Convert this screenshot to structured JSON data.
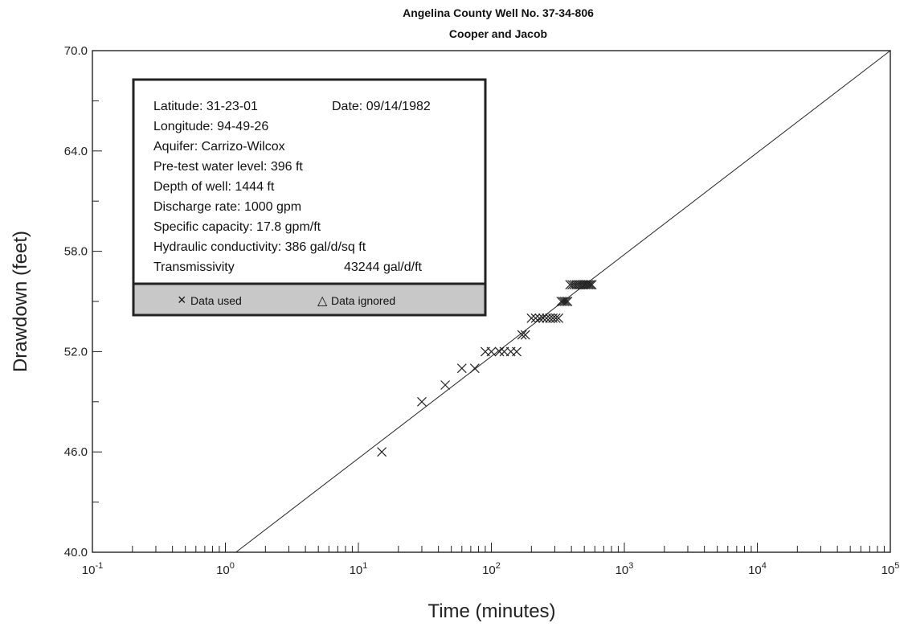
{
  "chart_data": {
    "type": "scatter",
    "title": "Angelina County Well No. 37-34-806",
    "subtitle": "Cooper and Jacob",
    "xlabel": "Time (minutes)",
    "ylabel": "Drawdown (feet)",
    "x_scale": "log",
    "xlim": [
      0.1,
      100000
    ],
    "ylim": [
      40,
      70
    ],
    "x_ticks": [
      {
        "base": "10",
        "exp": "-1",
        "value": 0.1
      },
      {
        "base": "10",
        "exp": "0",
        "value": 1
      },
      {
        "base": "10",
        "exp": "1",
        "value": 10
      },
      {
        "base": "10",
        "exp": "2",
        "value": 100
      },
      {
        "base": "10",
        "exp": "3",
        "value": 1000
      },
      {
        "base": "10",
        "exp": "4",
        "value": 10000
      },
      {
        "base": "10",
        "exp": "5",
        "value": 100000
      }
    ],
    "y_ticks": [
      "40.0",
      "46.0",
      "52.0",
      "58.0",
      "64.0",
      "70.0"
    ],
    "y_tick_values": [
      40,
      46,
      52,
      58,
      64,
      70
    ],
    "fit_line": {
      "x": [
        1.2,
        100000
      ],
      "y": [
        40,
        70
      ]
    },
    "series": [
      {
        "name": "Data used",
        "marker": "x",
        "points": [
          [
            15,
            46
          ],
          [
            30,
            49
          ],
          [
            45,
            50
          ],
          [
            60,
            51
          ],
          [
            75,
            51
          ],
          [
            90,
            52
          ],
          [
            100,
            52
          ],
          [
            115,
            52
          ],
          [
            125,
            52
          ],
          [
            140,
            52
          ],
          [
            155,
            52
          ],
          [
            170,
            53
          ],
          [
            180,
            53
          ],
          [
            200,
            54
          ],
          [
            215,
            54
          ],
          [
            230,
            54
          ],
          [
            245,
            54
          ],
          [
            260,
            54
          ],
          [
            275,
            54
          ],
          [
            290,
            54
          ],
          [
            305,
            54
          ],
          [
            320,
            54
          ],
          [
            335,
            55
          ],
          [
            345,
            55
          ],
          [
            355,
            55
          ],
          [
            365,
            55
          ],
          [
            375,
            55
          ],
          [
            390,
            56
          ],
          [
            405,
            56
          ],
          [
            420,
            56
          ],
          [
            435,
            56
          ],
          [
            450,
            56
          ],
          [
            465,
            56
          ],
          [
            480,
            56
          ],
          [
            495,
            56
          ],
          [
            510,
            56
          ],
          [
            525,
            56
          ],
          [
            540,
            56
          ],
          [
            555,
            56
          ],
          [
            570,
            56
          ]
        ]
      }
    ]
  },
  "info_box": {
    "latitude": "Latitude: 31-23-01",
    "date": "Date:  09/14/1982",
    "longitude": "Longitude:  94-49-26",
    "aquifer": "Aquifer:  Carrizo-Wilcox",
    "water_level": "Pre-test water level:  396 ft",
    "depth": "Depth of well:  1444 ft",
    "discharge": "Discharge rate:  1000 gpm",
    "specific_capacity": "Specific capacity:  17.8 gpm/ft",
    "conductivity": "Hydraulic conductivity:  386 gal/d/sq ft",
    "transmissivity_label": "Transmissivity",
    "transmissivity_value": "43244  gal/d/ft"
  },
  "legend": {
    "used_symbol": "×",
    "used": "Data used",
    "ignored_symbol": "△",
    "ignored": "Data ignored",
    "background": "#c8c8c8"
  }
}
